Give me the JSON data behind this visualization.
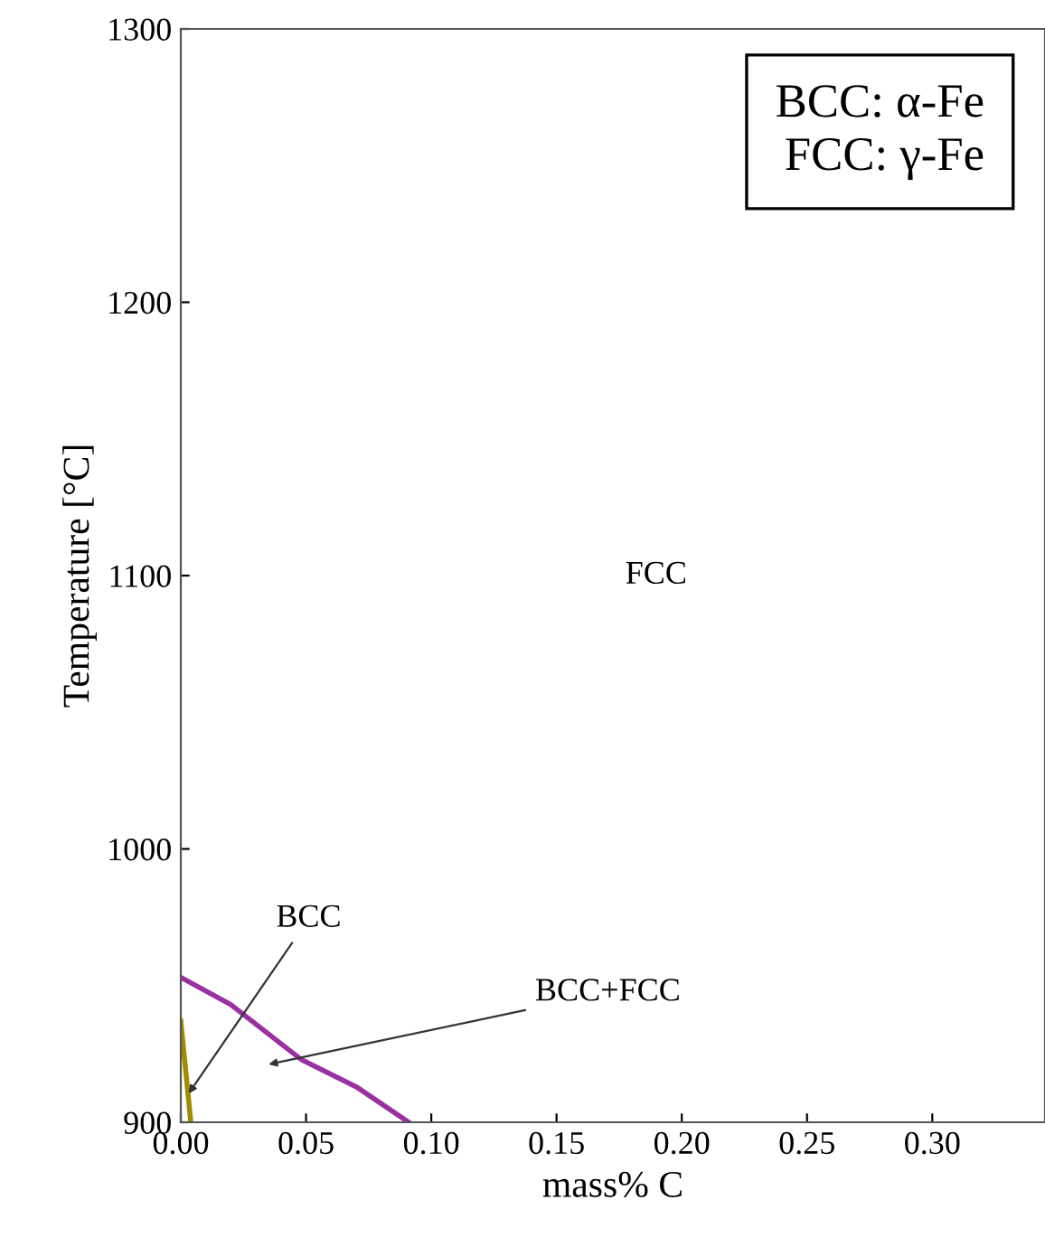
{
  "chart_data": {
    "type": "line",
    "xlabel": "mass% C",
    "ylabel": "Temperature [°C]",
    "xlim": [
      0,
      0.345
    ],
    "ylim": [
      900,
      1300
    ],
    "xticks": [
      {
        "value": 0,
        "label": "0.00"
      },
      {
        "value": 0.05,
        "label": "0.05"
      },
      {
        "value": 0.1,
        "label": "0.10"
      },
      {
        "value": 0.15,
        "label": "0.15"
      },
      {
        "value": 0.2,
        "label": "0.20"
      },
      {
        "value": 0.25,
        "label": "0.25"
      },
      {
        "value": 0.3,
        "label": "0.30"
      }
    ],
    "yticks": [
      900,
      1000,
      1100,
      1200,
      1300
    ],
    "series": [
      {
        "color": "#9b30a0",
        "x": [
          0,
          0.02,
          0.048,
          0.07,
          0.091
        ],
        "values": [
          953,
          943,
          923,
          913,
          900
        ]
      },
      {
        "color": "#a08c00",
        "x": [
          0,
          0.004
        ],
        "values": [
          937,
          900
        ]
      }
    ],
    "annotations": [
      {
        "text": "BCC",
        "x": 0.002,
        "y": 909
      },
      "BCC+FCC",
      "FCC",
      "BCC: α-Fe\nFCC: γ-Fe"
    ],
    "grid": false
  }
}
